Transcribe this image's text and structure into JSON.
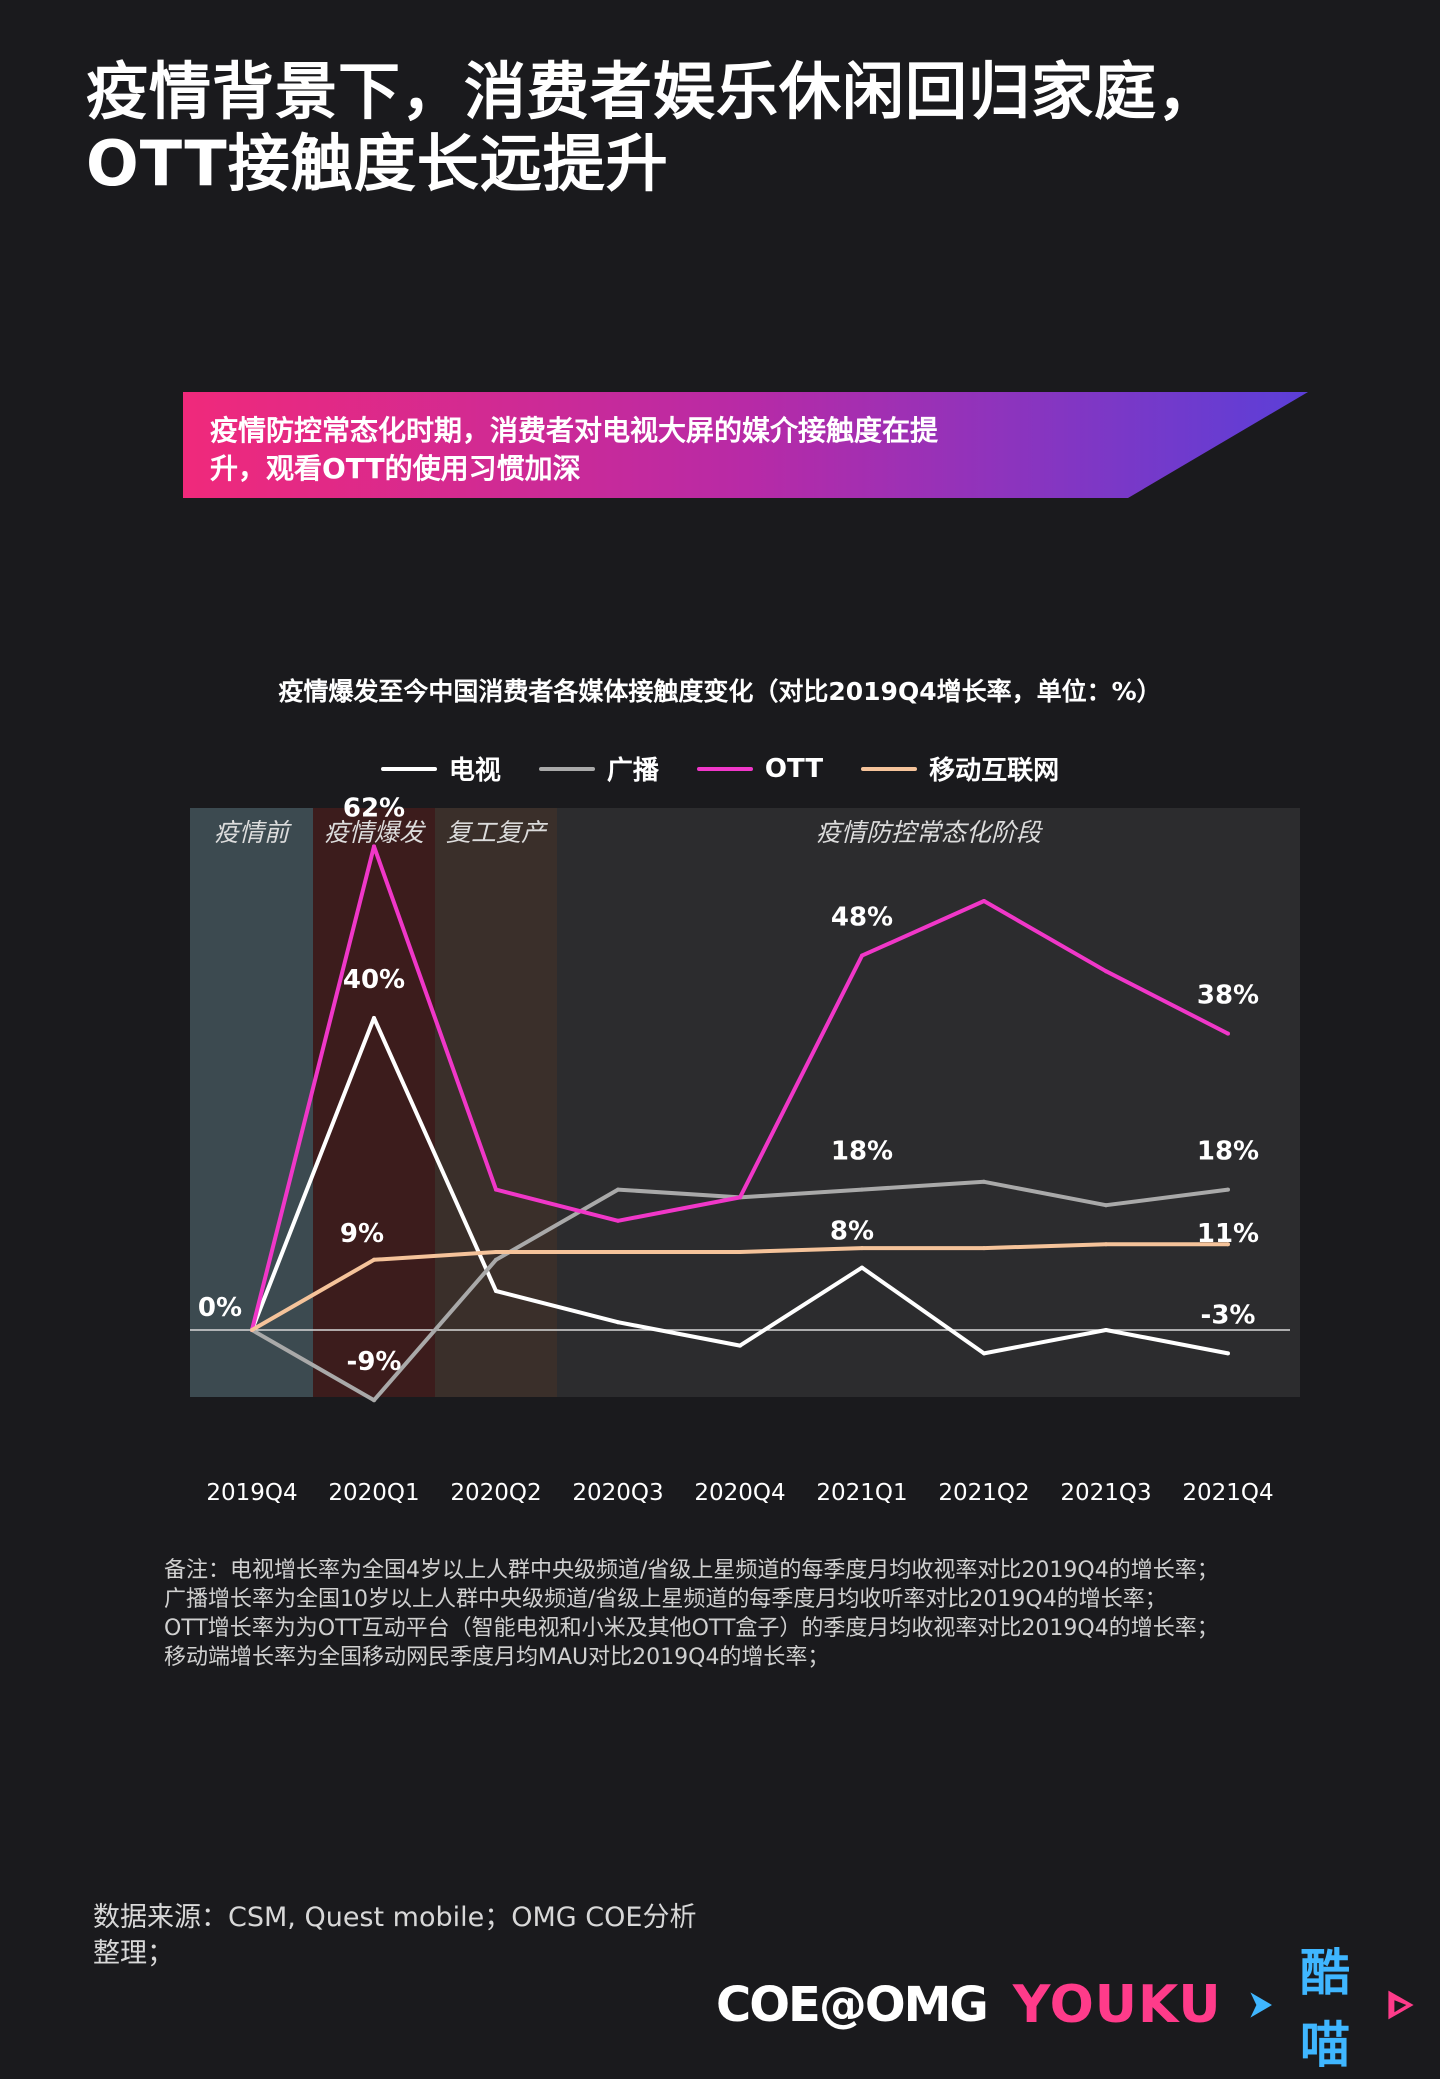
{
  "header": {
    "title_line1": "疫情背景下，消费者娱乐休闲回归家庭，",
    "title_line2": "OTT接触度长远提升"
  },
  "banner": {
    "line1": "疫情防控常态化时期，消费者对电视大屏的媒介接触度在提",
    "line2": "升，观看OTT的使用习惯加深"
  },
  "chart_data": {
    "type": "line",
    "title": "疫情爆发至今中国消费者各媒体接触度变化（对比2019Q4增长率，单位：%）",
    "categories": [
      "2019Q4",
      "2020Q1",
      "2020Q2",
      "2020Q3",
      "2020Q4",
      "2021Q1",
      "2021Q2",
      "2021Q3",
      "2021Q4"
    ],
    "phases": [
      {
        "label": "疫情前",
        "from": 0,
        "to": 0,
        "color": "#3c4a50"
      },
      {
        "label": "疫情爆发",
        "from": 1,
        "to": 1,
        "color": "#3c1c1c"
      },
      {
        "label": "复工复产",
        "from": 2,
        "to": 2,
        "color": "#3a2f2a"
      },
      {
        "label": "疫情防控常态化阶段",
        "from": 3,
        "to": 8,
        "color": "#2c2c2e"
      }
    ],
    "ylim": [
      -12,
      68
    ],
    "legend_position": "top-center",
    "series": [
      {
        "name": "电视",
        "color": "#ffffff",
        "values": [
          0,
          40,
          5,
          1,
          -2,
          8,
          -3,
          0,
          -3
        ]
      },
      {
        "name": "广播",
        "color": "#a9a9a9",
        "values": [
          0,
          -9,
          9,
          18,
          17,
          18,
          19,
          16,
          18
        ]
      },
      {
        "name": "OTT",
        "color": "#f037c8",
        "values": [
          0,
          62,
          18,
          14,
          17,
          48,
          55,
          46,
          38
        ]
      },
      {
        "name": "移动互联网",
        "color": "#f5c39a",
        "values": [
          0,
          9,
          10,
          10,
          10,
          10.5,
          10.5,
          11,
          11
        ]
      }
    ],
    "annotations": [
      {
        "text": "0%",
        "x": 0,
        "y": 0
      },
      {
        "text": "62%",
        "x": 1,
        "y": 62
      },
      {
        "text": "40%",
        "x": 1,
        "y": 40
      },
      {
        "text": "9%",
        "x": 1,
        "y": 9
      },
      {
        "text": "-9%",
        "x": 1,
        "y": -9
      },
      {
        "text": "48%",
        "x": 5,
        "y": 48
      },
      {
        "text": "18%",
        "x": 5,
        "y": 18
      },
      {
        "text": "8%",
        "x": 5,
        "y": 8
      },
      {
        "text": "38%",
        "x": 8,
        "y": 38
      },
      {
        "text": "18%",
        "x": 8,
        "y": 18
      },
      {
        "text": "11%",
        "x": 8,
        "y": 11
      },
      {
        "text": "-3%",
        "x": 8,
        "y": -3
      }
    ]
  },
  "notes": [
    "备注：电视增长率为全国4岁以上人群中央级频道/省级上星频道的每季度月均收视率对比2019Q4的增长率；",
    "广播增长率为全国10岁以上人群中央级频道/省级上星频道的每季度月均收听率对比2019Q4的增长率；",
    "OTT增长率为为OTT互动平台（智能电视和小米及其他OTT盒子）的季度月均收视率对比2019Q4的增长率；",
    "移动端增长率为全国移动网民季度月均MAU对比2019Q4的增长率；"
  ],
  "source": {
    "line1": "数据来源：CSM, Quest mobile；OMG COE分析",
    "line2": "整理；"
  },
  "logos": {
    "coe": "COE@OMG",
    "youku": "YOUKU",
    "kumiao": "酷喵"
  }
}
